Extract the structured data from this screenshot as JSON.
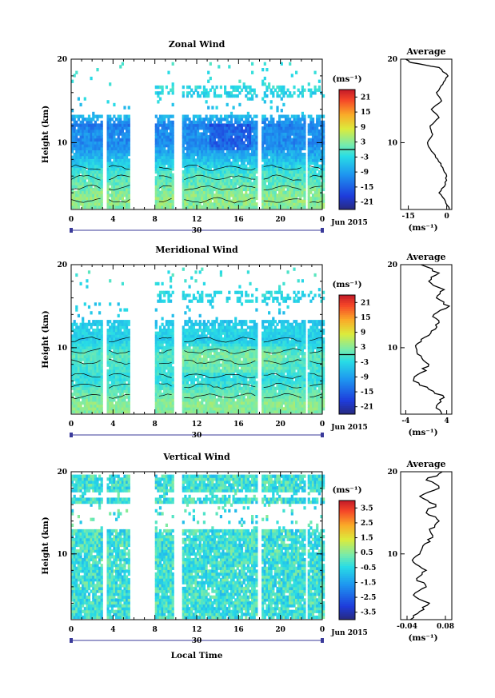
{
  "chart_data": [
    {
      "type": "heatmap",
      "title": "Zonal Wind",
      "ylabel": "Height (km)",
      "y_ticks": [
        "20",
        "10"
      ],
      "x_ticks": [
        "0",
        "4",
        "8",
        "12",
        "16",
        "20",
        "0"
      ],
      "date_day": "30",
      "date_label": "Jun 2015",
      "ylim": [
        2,
        20
      ],
      "xlim": [
        0,
        24
      ],
      "colorbar": {
        "unit": "(ms⁻¹)",
        "ticks": [
          "21",
          "15",
          "9",
          "3",
          "-3",
          "-9",
          "-15",
          "-21"
        ],
        "range": [
          -24,
          24
        ],
        "line_at": 0
      },
      "gaps_local_time_hours": [
        [
          3.0,
          3.4
        ],
        [
          5.7,
          8.1
        ],
        [
          9.7,
          10.5
        ],
        [
          17.7,
          18.1
        ],
        [
          22.3,
          22.6
        ]
      ],
      "side_profile": {
        "title": "Average",
        "unit_label": "(ms⁻¹)",
        "x_ticks": [
          "-15",
          "0"
        ],
        "y_ticks": [
          "20",
          "10"
        ],
        "xlim": [
          -18,
          2
        ],
        "profile": [
          [
            1.0,
            2
          ],
          [
            -0.5,
            3
          ],
          [
            -3.0,
            4
          ],
          [
            -0.5,
            5
          ],
          [
            0.0,
            6
          ],
          [
            -1.5,
            7
          ],
          [
            -3.5,
            8
          ],
          [
            -6.0,
            9
          ],
          [
            -7.5,
            10
          ],
          [
            -5.5,
            11
          ],
          [
            -6.5,
            12
          ],
          [
            -3.0,
            13
          ],
          [
            -6.0,
            14
          ],
          [
            -2.0,
            15
          ],
          [
            -4.0,
            16
          ],
          [
            -1.5,
            17
          ],
          [
            0.5,
            18
          ],
          [
            -3.0,
            19
          ],
          [
            -14.0,
            19.6
          ],
          [
            -16.0,
            20
          ]
        ]
      }
    },
    {
      "type": "heatmap",
      "title": "Meridional Wind",
      "ylabel": "Height (km)",
      "y_ticks": [
        "20",
        "10"
      ],
      "x_ticks": [
        "0",
        "4",
        "8",
        "12",
        "16",
        "20",
        "0"
      ],
      "date_day": "30",
      "date_label": "Jun 2015",
      "ylim": [
        2,
        20
      ],
      "xlim": [
        0,
        24
      ],
      "colorbar": {
        "unit": "(ms⁻¹)",
        "ticks": [
          "21",
          "15",
          "9",
          "3",
          "-3",
          "-9",
          "-15",
          "-21"
        ],
        "range": [
          -24,
          24
        ],
        "line_at": 0
      },
      "gaps_local_time_hours": [
        [
          3.0,
          3.4
        ],
        [
          5.7,
          8.1
        ],
        [
          9.7,
          10.5
        ],
        [
          17.7,
          18.1
        ],
        [
          22.3,
          22.6
        ]
      ],
      "side_profile": {
        "title": "Average",
        "unit_label": "(ms⁻¹)",
        "x_ticks": [
          "-4",
          "4"
        ],
        "y_ticks": [
          "20",
          "10"
        ],
        "xlim": [
          -5,
          5
        ],
        "profile": [
          [
            3.0,
            2
          ],
          [
            2.0,
            3
          ],
          [
            3.5,
            4
          ],
          [
            0.5,
            5
          ],
          [
            -2.5,
            6
          ],
          [
            -1.0,
            7
          ],
          [
            0.5,
            8
          ],
          [
            -1.0,
            9
          ],
          [
            -2.0,
            10
          ],
          [
            -1.0,
            11
          ],
          [
            1.0,
            12
          ],
          [
            2.5,
            13
          ],
          [
            1.5,
            14
          ],
          [
            4.5,
            15
          ],
          [
            2.0,
            16
          ],
          [
            3.5,
            17
          ],
          [
            0.5,
            18
          ],
          [
            2.5,
            19
          ],
          [
            -1.0,
            20
          ]
        ]
      }
    },
    {
      "type": "heatmap",
      "title": "Vertical Wind",
      "ylabel": "Height (km)",
      "y_ticks": [
        "20",
        "10"
      ],
      "x_ticks": [
        "0",
        "4",
        "8",
        "12",
        "16",
        "20",
        "0"
      ],
      "date_day": "30",
      "date_label": "Jun 2015",
      "xlabel": "Local Time",
      "ylim": [
        2,
        20
      ],
      "xlim": [
        0,
        24
      ],
      "colorbar": {
        "unit": "(ms⁻¹)",
        "ticks": [
          "3.5",
          "2.5",
          "1.5",
          "0.5",
          "-0.5",
          "-1.5",
          "-2.5",
          "-3.5"
        ],
        "range": [
          -4,
          4
        ],
        "line_at": null
      },
      "gaps_local_time_hours": [
        [
          3.0,
          3.4
        ],
        [
          5.7,
          8.1
        ],
        [
          9.7,
          10.5
        ],
        [
          17.7,
          18.1
        ],
        [
          22.3,
          22.6
        ]
      ],
      "side_profile": {
        "title": "Average",
        "unit_label": "(ms⁻¹)",
        "x_ticks": [
          "-0.04",
          "0.08"
        ],
        "y_ticks": [
          "20",
          "10"
        ],
        "xlim": [
          -0.06,
          0.1
        ],
        "profile": [
          [
            -0.03,
            2
          ],
          [
            0.0,
            3
          ],
          [
            0.03,
            4
          ],
          [
            -0.02,
            5
          ],
          [
            0.02,
            6
          ],
          [
            -0.01,
            7
          ],
          [
            0.02,
            8
          ],
          [
            -0.02,
            9
          ],
          [
            0.0,
            10
          ],
          [
            0.01,
            11
          ],
          [
            0.04,
            12
          ],
          [
            0.03,
            13
          ],
          [
            0.06,
            14
          ],
          [
            0.02,
            15
          ],
          [
            0.05,
            16
          ],
          [
            0.0,
            17
          ],
          [
            0.06,
            18
          ],
          [
            0.02,
            19
          ],
          [
            0.07,
            20
          ]
        ]
      }
    }
  ]
}
